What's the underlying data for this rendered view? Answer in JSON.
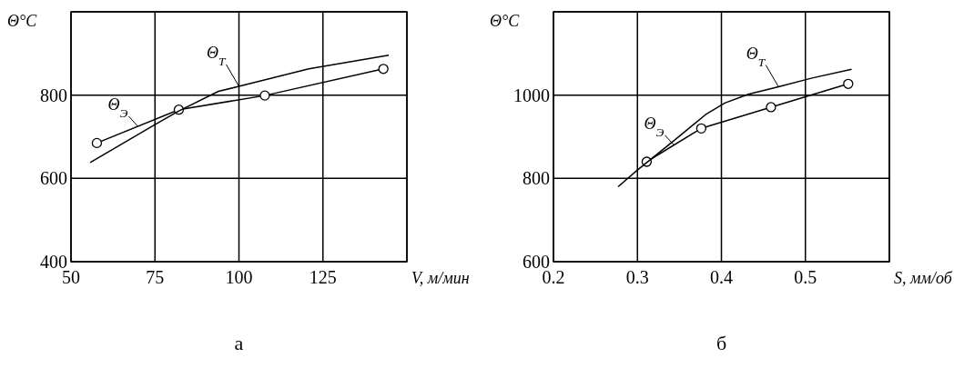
{
  "chart_data": [
    {
      "type": "line",
      "title": "а",
      "xlabel": "V, м/мин",
      "ylabel": "Θ°C",
      "xlim": [
        50,
        150
      ],
      "ylim": [
        400,
        1000
      ],
      "xticks": [
        50,
        75,
        100,
        125,
        {
          "value": 150,
          "label": null
        }
      ],
      "yticks": [
        400,
        600,
        800,
        {
          "value": 1000,
          "label": null
        }
      ],
      "grid": true,
      "series": [
        {
          "name": "Θ$_{Э}$",
          "color": "#000000",
          "marker": "circle",
          "x": [
            57.7,
            82.1,
            107.7,
            143
          ],
          "values": [
            685,
            765,
            799,
            863
          ]
        },
        {
          "name": "Θ$_{Т}$",
          "color": "#000000",
          "marker": "none",
          "x": [
            55.7,
            75,
            82.1,
            93.9,
            100,
            120.8,
            144.6
          ],
          "values": [
            638,
            729,
            762,
            809,
            821,
            863,
            896
          ]
        }
      ]
    },
    {
      "type": "line",
      "title": "б",
      "xlabel": "S, мм/об",
      "ylabel": "Θ°C",
      "xlim": [
        0.2,
        0.6
      ],
      "ylim": [
        600,
        1200
      ],
      "xticks": [
        0.2,
        0.3,
        0.4,
        0.5,
        {
          "value": 0.6,
          "label": null
        }
      ],
      "yticks": [
        600,
        800,
        1000,
        {
          "value": 1200,
          "label": null
        }
      ],
      "grid": true,
      "series": [
        {
          "name": "Θ$_{Э}$",
          "color": "#000000",
          "marker": "circle",
          "x": [
            0.311,
            0.376,
            0.459,
            0.551
          ],
          "values": [
            840,
            920,
            971,
            1027
          ]
        },
        {
          "name": "Θ$_{Т}$",
          "color": "#000000",
          "marker": "none",
          "x": [
            0.277,
            0.3,
            0.345,
            0.381,
            0.404,
            0.432,
            0.468,
            0.508,
            0.555
          ],
          "values": [
            780,
            820,
            893,
            953,
            981,
            1002,
            1020,
            1041,
            1062
          ]
        }
      ]
    }
  ]
}
